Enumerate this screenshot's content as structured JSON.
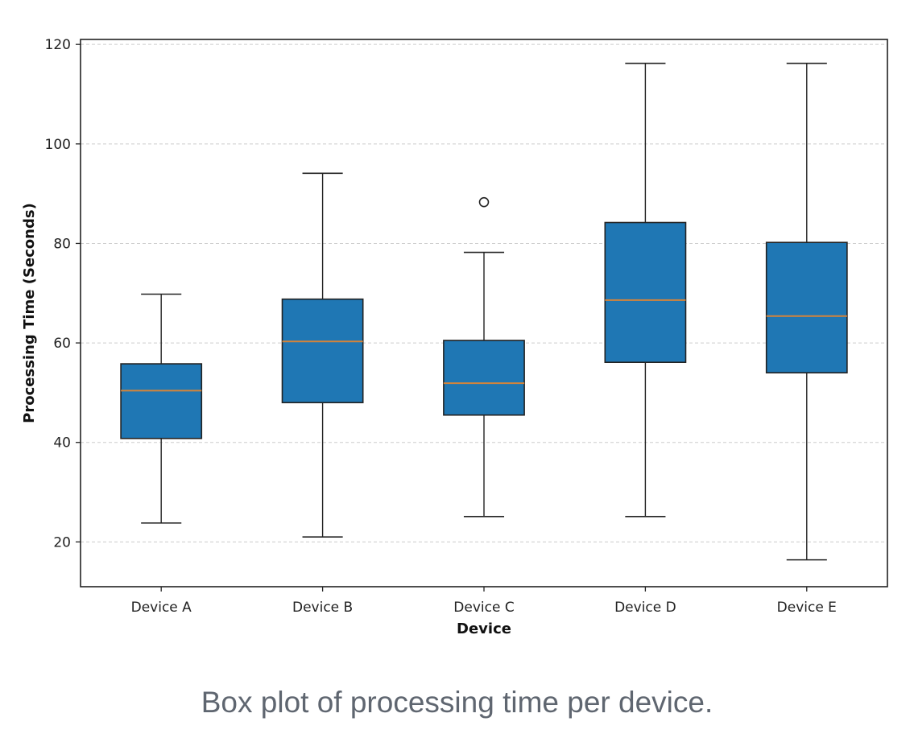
{
  "chart_data": {
    "type": "box",
    "xlabel": "Device",
    "ylabel": "Processing Time (Seconds)",
    "ylim": [
      11,
      121
    ],
    "yticks": [
      20,
      40,
      60,
      80,
      100,
      120
    ],
    "grid": "horizontal-dashed",
    "categories": [
      "Device A",
      "Device B",
      "Device C",
      "Device D",
      "Device E"
    ],
    "boxes": [
      {
        "name": "Device A",
        "whisker_low": 23.8,
        "q1": 40.8,
        "median": 50.4,
        "q3": 55.8,
        "whisker_high": 69.8,
        "outliers": []
      },
      {
        "name": "Device B",
        "whisker_low": 21.0,
        "q1": 48.0,
        "median": 60.3,
        "q3": 68.8,
        "whisker_high": 94.1,
        "outliers": []
      },
      {
        "name": "Device C",
        "whisker_low": 25.1,
        "q1": 45.5,
        "median": 51.9,
        "q3": 60.5,
        "whisker_high": 78.2,
        "outliers": [
          88.3
        ]
      },
      {
        "name": "Device D",
        "whisker_low": 25.1,
        "q1": 56.1,
        "median": 68.6,
        "q3": 84.2,
        "whisker_high": 116.2,
        "outliers": []
      },
      {
        "name": "Device E",
        "whisker_low": 16.4,
        "q1": 54.0,
        "median": 65.4,
        "q3": 80.2,
        "whisker_high": 116.2,
        "outliers": []
      }
    ],
    "colors": {
      "box_fill": "#1f77b4",
      "median": "#d4843a",
      "edge": "#222222",
      "grid": "#cccccc"
    }
  },
  "caption": "Box plot of processing time per device."
}
